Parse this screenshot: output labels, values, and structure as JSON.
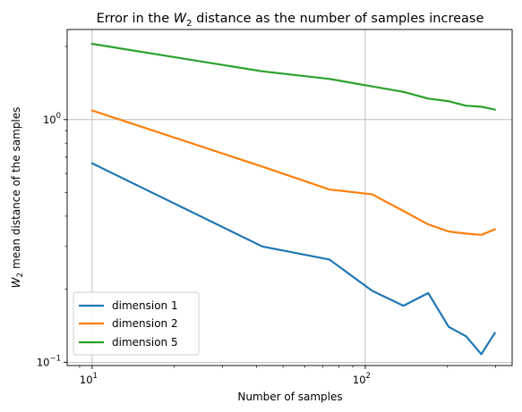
{
  "chart_data": {
    "type": "line",
    "title_prefix": "Error in the ",
    "title_w": "W",
    "title_w_sub": "2",
    "title_suffix": " distance as the number of samples increase",
    "xlabel": "Number of samples",
    "ylabel_w": "W",
    "ylabel_w_sub": "2",
    "ylabel_suffix": " mean distance of the samples",
    "xscale": "log",
    "yscale": "log",
    "xlim": [
      8.1,
      345
    ],
    "ylim": [
      0.097,
      2.35
    ],
    "grid": true,
    "legend_position": "lower-left",
    "x_ticks": [
      {
        "value": 10,
        "base": "10",
        "exp": "1"
      },
      {
        "value": 100,
        "base": "10",
        "exp": "2"
      }
    ],
    "y_ticks": [
      {
        "value": 0.1,
        "base": "10",
        "exp": "−1"
      },
      {
        "value": 1,
        "base": "10",
        "exp": "0"
      }
    ],
    "x": [
      10,
      42,
      74,
      106,
      138,
      170,
      202,
      234,
      266,
      298
    ],
    "series": [
      {
        "name": "dimension 1",
        "color": "#1f77b4",
        "values": [
          0.66,
          0.3,
          0.265,
          0.197,
          0.171,
          0.193,
          0.14,
          0.128,
          0.108,
          0.132
        ]
      },
      {
        "name": "dimension 2",
        "color": "#ff7f0e",
        "values": [
          1.09,
          0.64,
          0.515,
          0.492,
          0.42,
          0.37,
          0.346,
          0.339,
          0.335,
          0.353
        ]
      },
      {
        "name": "dimension 5",
        "color": "#2ca02c",
        "values": [
          2.05,
          1.58,
          1.47,
          1.37,
          1.3,
          1.22,
          1.19,
          1.14,
          1.13,
          1.1
        ]
      }
    ]
  }
}
